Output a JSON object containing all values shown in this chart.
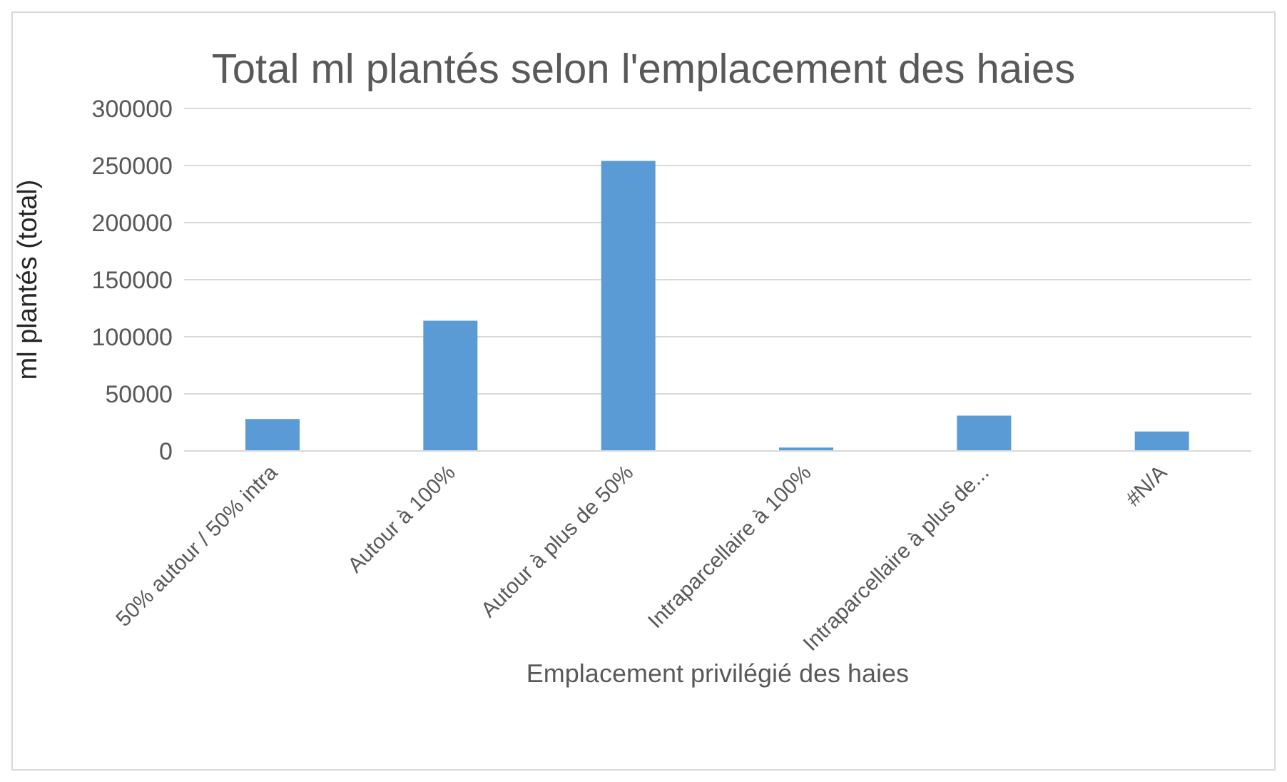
{
  "chart_data": {
    "type": "bar",
    "title": "Total ml plantés selon l'emplacement des haies",
    "xlabel": "Emplacement privilégié des haies",
    "ylabel": "ml plantés (total)",
    "categories": [
      "50% autour / 50% intra",
      "Autour à 100%",
      "Autour à plus de 50%",
      "Intraparcellaire à 100%",
      "Intraparcellaire à plus de...",
      "#N/A"
    ],
    "values": [
      28000,
      114000,
      254000,
      3000,
      31000,
      17000
    ],
    "color": "#5b9bd5",
    "ylim": [
      0,
      300000
    ],
    "yticks": [
      0,
      50000,
      100000,
      150000,
      200000,
      250000,
      300000
    ],
    "grid": "y"
  }
}
